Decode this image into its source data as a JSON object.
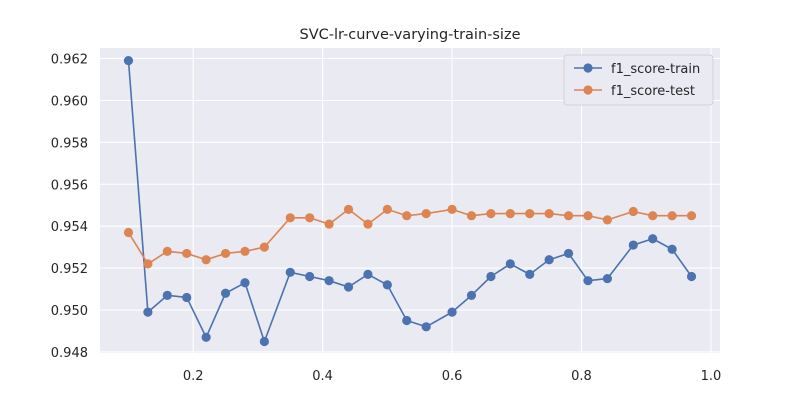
{
  "chart_data": {
    "type": "line",
    "title": "SVC-lr-curve-varying-train-size",
    "xlabel": "",
    "ylabel": "",
    "xlim": [
      0.056,
      1.014
    ],
    "ylim": [
      0.94795,
      0.9625
    ],
    "xticks": [
      0.2,
      0.4,
      0.6,
      0.8,
      1.0
    ],
    "xtick_labels": [
      "0.2",
      "0.4",
      "0.6",
      "0.8",
      "1.0"
    ],
    "yticks": [
      0.948,
      0.95,
      0.952,
      0.954,
      0.956,
      0.958,
      0.96,
      0.962
    ],
    "ytick_labels": [
      "0.948",
      "0.950",
      "0.952",
      "0.954",
      "0.956",
      "0.958",
      "0.960",
      "0.962"
    ],
    "grid": true,
    "legend_position": "top-right",
    "x": [
      0.1,
      0.13,
      0.16,
      0.19,
      0.22,
      0.25,
      0.28,
      0.31,
      0.35,
      0.38,
      0.41,
      0.44,
      0.47,
      0.5,
      0.53,
      0.56,
      0.6,
      0.63,
      0.66,
      0.69,
      0.72,
      0.75,
      0.78,
      0.81,
      0.84,
      0.88,
      0.91,
      0.94,
      0.97
    ],
    "series": [
      {
        "name": "f1_score-train",
        "color": "#4c72b0",
        "values": [
          0.9619,
          0.9499,
          0.9507,
          0.9506,
          0.9487,
          0.9508,
          0.9513,
          0.9485,
          0.9518,
          0.9516,
          0.9514,
          0.9511,
          0.9517,
          0.9512,
          0.9495,
          0.9492,
          0.9499,
          0.9507,
          0.9516,
          0.9522,
          0.9517,
          0.9524,
          0.9527,
          0.9514,
          0.9515,
          0.9531,
          0.9534,
          0.9529,
          0.9516
        ]
      },
      {
        "name": "f1_score-test",
        "color": "#dd8452",
        "values": [
          0.9537,
          0.9522,
          0.9528,
          0.9527,
          0.9524,
          0.9527,
          0.9528,
          0.953,
          0.9544,
          0.9544,
          0.9541,
          0.9548,
          0.9541,
          0.9548,
          0.9545,
          0.9546,
          0.9548,
          0.9545,
          0.9546,
          0.9546,
          0.9546,
          0.9546,
          0.9545,
          0.9545,
          0.9543,
          0.9547,
          0.9545,
          0.9545,
          0.9545
        ]
      }
    ]
  }
}
